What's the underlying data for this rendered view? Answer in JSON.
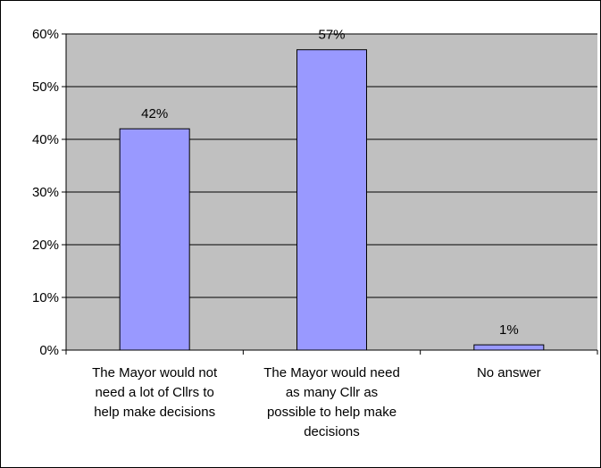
{
  "chart_data": {
    "type": "bar",
    "categories": [
      [
        "The Mayor would not",
        "need a lot of Cllrs to",
        "help make decisions"
      ],
      [
        "The Mayor would need",
        "as many Cllr as",
        "possible to help make",
        "decisions"
      ],
      [
        "No answer"
      ]
    ],
    "values": [
      42,
      57,
      1
    ],
    "data_labels": [
      "42%",
      "57%",
      "1%"
    ],
    "y_ticks": [
      "0%",
      "10%",
      "20%",
      "30%",
      "40%",
      "50%",
      "60%"
    ],
    "ylim": [
      0,
      60
    ],
    "grid": true,
    "legend": "none",
    "title": "",
    "xlabel": "",
    "ylabel": "",
    "colors": {
      "bar_fill": "#9999ff",
      "bar_stroke": "#000000",
      "plot_background": "#c0c0c0",
      "gridline": "#000000"
    }
  }
}
